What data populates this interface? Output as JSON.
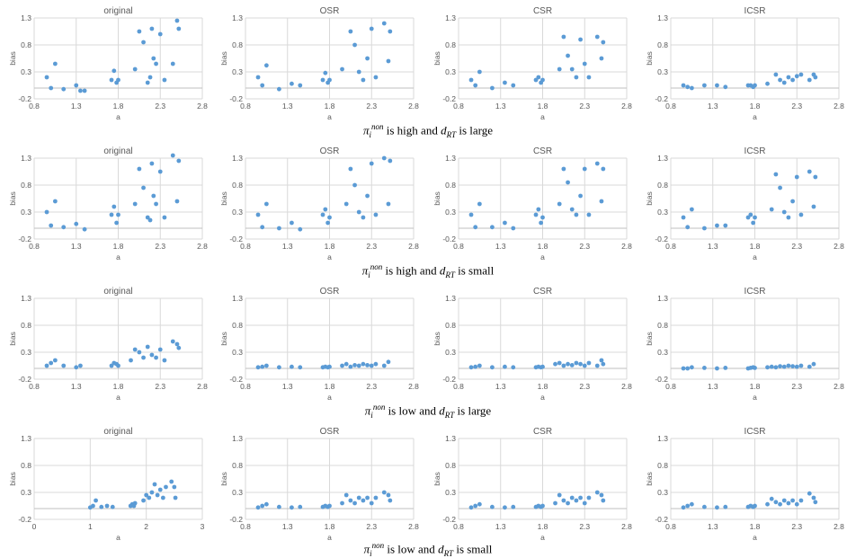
{
  "captions": [
    {
      "pi": "π",
      "pi_sub": "i",
      "pi_sup": "non",
      "level": "is high and",
      "d": "d",
      "d_sub": "RT",
      "dist": "is large"
    },
    {
      "pi": "π",
      "pi_sub": "i",
      "pi_sup": "non",
      "level": "is high and",
      "d": "d",
      "d_sub": "RT",
      "dist": "is small"
    },
    {
      "pi": "π",
      "pi_sub": "i",
      "pi_sup": "non",
      "level": "is low and",
      "d": "d",
      "d_sub": "RT",
      "dist": "is large"
    },
    {
      "pi": "π",
      "pi_sub": "i",
      "pi_sup": "non",
      "level": "is low and",
      "d": "d",
      "d_sub": "RT",
      "dist": "is small"
    }
  ],
  "style": {
    "marker_color": "#5b9bd5",
    "grid_color": "#d9d9d9"
  },
  "chart_data": [
    {
      "type": "scatter",
      "title": "original",
      "xlabel": "a",
      "ylabel": "bias",
      "xlim": [
        0.8,
        2.8
      ],
      "ylim": [
        -0.2,
        1.3
      ],
      "xticks": [
        "0.8",
        "1.3",
        "1.8",
        "2.3",
        "2.8"
      ],
      "yticks": [
        "-0.2",
        "0.3",
        "0.8",
        "1.3"
      ],
      "x": [
        0.95,
        1.0,
        1.05,
        1.15,
        1.3,
        1.35,
        1.4,
        1.72,
        1.75,
        1.78,
        1.8,
        2.0,
        2.05,
        2.1,
        2.15,
        2.18,
        2.2,
        2.22,
        2.25,
        2.3,
        2.35,
        2.45,
        2.5,
        2.52
      ],
      "y": [
        0.2,
        0.0,
        0.45,
        -0.02,
        0.05,
        -0.05,
        -0.05,
        0.15,
        0.32,
        0.1,
        0.15,
        0.35,
        1.05,
        0.85,
        0.1,
        0.2,
        1.1,
        0.55,
        0.45,
        1.0,
        0.15,
        0.45,
        1.25,
        1.1
      ]
    },
    {
      "type": "scatter",
      "title": "OSR",
      "xlabel": "a",
      "ylabel": "bias",
      "xlim": [
        0.8,
        2.8
      ],
      "ylim": [
        -0.2,
        1.3
      ],
      "xticks": [
        "0.8",
        "1.3",
        "1.8",
        "2.3",
        "2.8"
      ],
      "yticks": [
        "-0.2",
        "0.3",
        "0.8",
        "1.3"
      ],
      "x": [
        0.95,
        1.0,
        1.05,
        1.2,
        1.35,
        1.45,
        1.72,
        1.75,
        1.78,
        1.8,
        1.95,
        2.05,
        2.1,
        2.15,
        2.2,
        2.25,
        2.3,
        2.35,
        2.45,
        2.5,
        2.52
      ],
      "y": [
        0.2,
        0.05,
        0.42,
        -0.02,
        0.08,
        0.05,
        0.15,
        0.28,
        0.1,
        0.15,
        0.35,
        1.05,
        0.8,
        0.3,
        0.15,
        0.55,
        1.1,
        0.2,
        1.2,
        0.5,
        1.05
      ]
    },
    {
      "type": "scatter",
      "title": "CSR",
      "xlabel": "a",
      "ylabel": "bias",
      "xlim": [
        0.8,
        2.8
      ],
      "ylim": [
        -0.2,
        1.3
      ],
      "xticks": [
        "0.8",
        "1.3",
        "1.8",
        "2.3",
        "2.8"
      ],
      "yticks": [
        "-0.2",
        "0.3",
        "0.8",
        "1.3"
      ],
      "x": [
        0.95,
        1.0,
        1.05,
        1.2,
        1.35,
        1.45,
        1.72,
        1.75,
        1.78,
        1.8,
        2.0,
        2.05,
        2.1,
        2.15,
        2.2,
        2.25,
        2.3,
        2.35,
        2.45,
        2.5,
        2.52
      ],
      "y": [
        0.15,
        0.05,
        0.3,
        0.0,
        0.1,
        0.05,
        0.15,
        0.2,
        0.1,
        0.15,
        0.35,
        0.95,
        0.6,
        0.35,
        0.2,
        0.9,
        0.45,
        0.2,
        0.95,
        0.55,
        0.85
      ]
    },
    {
      "type": "scatter",
      "title": "ICSR",
      "xlabel": "a",
      "ylabel": "bias",
      "xlim": [
        0.8,
        2.8
      ],
      "ylim": [
        -0.2,
        1.3
      ],
      "xticks": [
        "0.8",
        "1.3",
        "1.8",
        "2.3",
        "2.8"
      ],
      "yticks": [
        "-0.2",
        "0.3",
        "0.8",
        "1.3"
      ],
      "x": [
        0.95,
        1.0,
        1.05,
        1.2,
        1.35,
        1.45,
        1.72,
        1.75,
        1.78,
        1.8,
        1.95,
        2.05,
        2.1,
        2.15,
        2.2,
        2.25,
        2.3,
        2.35,
        2.45,
        2.5,
        2.52
      ],
      "y": [
        0.05,
        0.02,
        0.0,
        0.05,
        0.05,
        0.02,
        0.05,
        0.05,
        0.02,
        0.05,
        0.08,
        0.25,
        0.15,
        0.1,
        0.2,
        0.15,
        0.22,
        0.25,
        0.15,
        0.25,
        0.2
      ]
    },
    {
      "type": "scatter",
      "title": "original",
      "xlabel": "a",
      "ylabel": "bias",
      "xlim": [
        0.8,
        2.8
      ],
      "ylim": [
        -0.2,
        1.3
      ],
      "xticks": [
        "0.8",
        "1.3",
        "1.8",
        "2.3",
        "2.8"
      ],
      "yticks": [
        "-0.2",
        "0.3",
        "0.8",
        "1.3"
      ],
      "x": [
        0.95,
        1.0,
        1.05,
        1.15,
        1.3,
        1.4,
        1.72,
        1.75,
        1.78,
        1.8,
        2.0,
        2.05,
        2.1,
        2.15,
        2.18,
        2.2,
        2.22,
        2.25,
        2.3,
        2.35,
        2.45,
        2.5,
        2.52
      ],
      "y": [
        0.3,
        0.05,
        0.5,
        0.02,
        0.08,
        -0.02,
        0.25,
        0.4,
        0.1,
        0.25,
        0.45,
        1.1,
        0.75,
        0.2,
        0.15,
        1.2,
        0.6,
        0.45,
        1.05,
        0.2,
        1.35,
        0.5,
        1.25
      ]
    },
    {
      "type": "scatter",
      "title": "OSR",
      "xlabel": "a",
      "ylabel": "bias",
      "xlim": [
        0.8,
        2.8
      ],
      "ylim": [
        -0.2,
        1.3
      ],
      "xticks": [
        "0.8",
        "1.3",
        "1.8",
        "2.3",
        "2.8"
      ],
      "yticks": [
        "-0.2",
        "0.3",
        "0.8",
        "1.3"
      ],
      "x": [
        0.95,
        1.0,
        1.05,
        1.2,
        1.35,
        1.45,
        1.72,
        1.75,
        1.78,
        1.8,
        2.0,
        2.05,
        2.1,
        2.15,
        2.2,
        2.25,
        2.3,
        2.35,
        2.45,
        2.5,
        2.52
      ],
      "y": [
        0.25,
        0.02,
        0.45,
        0.0,
        0.1,
        -0.02,
        0.25,
        0.35,
        0.1,
        0.2,
        0.45,
        1.1,
        0.8,
        0.3,
        0.2,
        0.6,
        1.2,
        0.25,
        1.3,
        0.45,
        1.25
      ]
    },
    {
      "type": "scatter",
      "title": "CSR",
      "xlabel": "a",
      "ylabel": "bias",
      "xlim": [
        0.8,
        2.8
      ],
      "ylim": [
        -0.2,
        1.3
      ],
      "xticks": [
        "0.8",
        "1.3",
        "1.8",
        "2.3",
        "2.8"
      ],
      "yticks": [
        "-0.2",
        "0.3",
        "0.8",
        "1.3"
      ],
      "x": [
        0.95,
        1.0,
        1.05,
        1.2,
        1.35,
        1.45,
        1.72,
        1.75,
        1.78,
        1.8,
        2.0,
        2.05,
        2.1,
        2.15,
        2.2,
        2.25,
        2.3,
        2.35,
        2.45,
        2.5,
        2.52
      ],
      "y": [
        0.25,
        0.02,
        0.45,
        0.02,
        0.1,
        0.0,
        0.25,
        0.35,
        0.1,
        0.2,
        0.45,
        1.1,
        0.85,
        0.35,
        0.25,
        0.6,
        1.1,
        0.25,
        1.2,
        0.5,
        1.1
      ]
    },
    {
      "type": "scatter",
      "title": "ICSR",
      "xlabel": "a",
      "ylabel": "bias",
      "xlim": [
        0.8,
        2.8
      ],
      "ylim": [
        -0.2,
        1.3
      ],
      "xticks": [
        "0.8",
        "1.3",
        "1.8",
        "2.3",
        "2.8"
      ],
      "yticks": [
        "-0.2",
        "0.3",
        "0.8",
        "1.3"
      ],
      "x": [
        0.95,
        1.0,
        1.05,
        1.2,
        1.35,
        1.45,
        1.72,
        1.75,
        1.78,
        1.8,
        2.0,
        2.05,
        2.1,
        2.15,
        2.2,
        2.25,
        2.3,
        2.35,
        2.45,
        2.5,
        2.52
      ],
      "y": [
        0.2,
        0.02,
        0.35,
        0.0,
        0.05,
        0.05,
        0.2,
        0.25,
        0.1,
        0.2,
        0.35,
        1.0,
        0.75,
        0.3,
        0.2,
        0.5,
        0.95,
        0.25,
        1.05,
        0.4,
        0.95
      ]
    },
    {
      "type": "scatter",
      "title": "original",
      "xlabel": "a",
      "ylabel": "bias",
      "xlim": [
        0.8,
        2.8
      ],
      "ylim": [
        -0.2,
        1.3
      ],
      "xticks": [
        "0.8",
        "1.3",
        "1.8",
        "2.3",
        "2.8"
      ],
      "yticks": [
        "-0.2",
        "0.3",
        "0.8",
        "1.3"
      ],
      "x": [
        0.95,
        1.0,
        1.05,
        1.15,
        1.3,
        1.35,
        1.72,
        1.75,
        1.78,
        1.8,
        1.95,
        2.0,
        2.05,
        2.1,
        2.15,
        2.2,
        2.25,
        2.3,
        2.35,
        2.45,
        2.5,
        2.52
      ],
      "y": [
        0.05,
        0.1,
        0.15,
        0.05,
        0.02,
        0.05,
        0.05,
        0.1,
        0.08,
        0.05,
        0.15,
        0.35,
        0.3,
        0.2,
        0.4,
        0.25,
        0.2,
        0.35,
        0.15,
        0.5,
        0.45,
        0.38
      ]
    },
    {
      "type": "scatter",
      "title": "OSR",
      "xlabel": "a",
      "ylabel": "bias",
      "xlim": [
        0.8,
        2.8
      ],
      "ylim": [
        -0.2,
        1.3
      ],
      "xticks": [
        "0.8",
        "1.3",
        "1.8",
        "2.3",
        "2.8"
      ],
      "yticks": [
        "-0.2",
        "0.3",
        "0.8",
        "1.3"
      ],
      "x": [
        0.95,
        1.0,
        1.05,
        1.2,
        1.35,
        1.45,
        1.72,
        1.75,
        1.78,
        1.8,
        1.95,
        2.0,
        2.05,
        2.1,
        2.15,
        2.2,
        2.25,
        2.3,
        2.35,
        2.45,
        2.5
      ],
      "y": [
        0.02,
        0.03,
        0.05,
        0.02,
        0.03,
        0.02,
        0.02,
        0.03,
        0.02,
        0.03,
        0.05,
        0.08,
        0.03,
        0.06,
        0.05,
        0.08,
        0.06,
        0.05,
        0.08,
        0.05,
        0.12
      ]
    },
    {
      "type": "scatter",
      "title": "CSR",
      "xlabel": "a",
      "ylabel": "bias",
      "xlim": [
        0.8,
        2.8
      ],
      "ylim": [
        -0.2,
        1.3
      ],
      "xticks": [
        "0.8",
        "1.3",
        "1.8",
        "2.3",
        "2.8"
      ],
      "yticks": [
        "-0.2",
        "0.3",
        "0.8",
        "1.3"
      ],
      "x": [
        0.95,
        1.0,
        1.05,
        1.2,
        1.35,
        1.45,
        1.72,
        1.75,
        1.78,
        1.8,
        1.95,
        2.0,
        2.05,
        2.1,
        2.15,
        2.2,
        2.25,
        2.3,
        2.35,
        2.45,
        2.5,
        2.52
      ],
      "y": [
        0.02,
        0.03,
        0.05,
        0.02,
        0.03,
        0.02,
        0.02,
        0.03,
        0.02,
        0.03,
        0.08,
        0.1,
        0.05,
        0.08,
        0.06,
        0.1,
        0.08,
        0.05,
        0.1,
        0.05,
        0.15,
        0.08
      ]
    },
    {
      "type": "scatter",
      "title": "ICSR",
      "xlabel": "a",
      "ylabel": "bias",
      "xlim": [
        0.8,
        2.8
      ],
      "ylim": [
        -0.2,
        1.3
      ],
      "xticks": [
        "0.8",
        "1.3",
        "1.8",
        "2.3",
        "2.8"
      ],
      "yticks": [
        "-0.2",
        "0.3",
        "0.8",
        "1.3"
      ],
      "x": [
        0.95,
        1.0,
        1.05,
        1.2,
        1.35,
        1.45,
        1.72,
        1.75,
        1.78,
        1.8,
        1.95,
        2.0,
        2.05,
        2.1,
        2.15,
        2.2,
        2.25,
        2.3,
        2.35,
        2.45,
        2.5
      ],
      "y": [
        0.0,
        0.0,
        0.02,
        0.01,
        0.0,
        0.01,
        0.0,
        0.01,
        0.02,
        0.01,
        0.02,
        0.03,
        0.02,
        0.04,
        0.03,
        0.05,
        0.04,
        0.03,
        0.05,
        0.03,
        0.08
      ]
    },
    {
      "type": "scatter",
      "title": "original",
      "xlabel": "a",
      "ylabel": "bias",
      "xlim": [
        0,
        3
      ],
      "ylim": [
        -0.2,
        1.3
      ],
      "xticks": [
        "0",
        "1",
        "2",
        "3"
      ],
      "yticks": [
        "-0.2",
        "0.3",
        "0.8",
        "1.3"
      ],
      "x": [
        1.0,
        1.05,
        1.1,
        1.2,
        1.3,
        1.4,
        1.72,
        1.75,
        1.78,
        1.8,
        1.95,
        2.0,
        2.05,
        2.1,
        2.15,
        2.2,
        2.25,
        2.3,
        2.35,
        2.45,
        2.5,
        2.52
      ],
      "y": [
        0.02,
        0.05,
        0.15,
        0.03,
        0.05,
        0.03,
        0.05,
        0.08,
        0.05,
        0.1,
        0.15,
        0.25,
        0.2,
        0.3,
        0.45,
        0.25,
        0.35,
        0.2,
        0.4,
        0.5,
        0.4,
        0.2
      ]
    },
    {
      "type": "scatter",
      "title": "OSR",
      "xlabel": "a",
      "ylabel": "bias",
      "xlim": [
        0.8,
        2.8
      ],
      "ylim": [
        -0.2,
        1.3
      ],
      "xticks": [
        "0.8",
        "1.3",
        "1.8",
        "2.3",
        "2.8"
      ],
      "yticks": [
        "-0.2",
        "0.3",
        "0.8",
        "1.3"
      ],
      "x": [
        0.95,
        1.0,
        1.05,
        1.2,
        1.35,
        1.45,
        1.72,
        1.75,
        1.78,
        1.8,
        1.95,
        2.0,
        2.05,
        2.1,
        2.15,
        2.2,
        2.25,
        2.3,
        2.35,
        2.45,
        2.5,
        2.52
      ],
      "y": [
        0.02,
        0.05,
        0.08,
        0.03,
        0.02,
        0.03,
        0.03,
        0.05,
        0.03,
        0.05,
        0.1,
        0.25,
        0.15,
        0.1,
        0.2,
        0.15,
        0.2,
        0.1,
        0.2,
        0.3,
        0.25,
        0.15
      ]
    },
    {
      "type": "scatter",
      "title": "CSR",
      "xlabel": "a",
      "ylabel": "bias",
      "xlim": [
        0.8,
        2.8
      ],
      "ylim": [
        -0.2,
        1.3
      ],
      "xticks": [
        "0.8",
        "1.3",
        "1.8",
        "2.3",
        "2.8"
      ],
      "yticks": [
        "-0.2",
        "0.3",
        "0.8",
        "1.3"
      ],
      "x": [
        0.95,
        1.0,
        1.05,
        1.2,
        1.35,
        1.45,
        1.72,
        1.75,
        1.78,
        1.8,
        1.95,
        2.0,
        2.05,
        2.1,
        2.15,
        2.2,
        2.25,
        2.3,
        2.35,
        2.45,
        2.5,
        2.52
      ],
      "y": [
        0.02,
        0.05,
        0.08,
        0.03,
        0.02,
        0.03,
        0.03,
        0.05,
        0.03,
        0.05,
        0.1,
        0.25,
        0.15,
        0.1,
        0.2,
        0.15,
        0.2,
        0.1,
        0.2,
        0.3,
        0.25,
        0.15
      ]
    },
    {
      "type": "scatter",
      "title": "ICSR",
      "xlabel": "a",
      "ylabel": "bias",
      "xlim": [
        0.8,
        2.8
      ],
      "ylim": [
        -0.2,
        1.3
      ],
      "xticks": [
        "0.8",
        "1.3",
        "1.8",
        "2.3",
        "2.8"
      ],
      "yticks": [
        "-0.2",
        "0.3",
        "0.8",
        "1.3"
      ],
      "x": [
        0.95,
        1.0,
        1.05,
        1.2,
        1.35,
        1.45,
        1.72,
        1.75,
        1.78,
        1.8,
        1.95,
        2.0,
        2.05,
        2.1,
        2.15,
        2.2,
        2.25,
        2.3,
        2.35,
        2.45,
        2.5,
        2.52
      ],
      "y": [
        0.02,
        0.05,
        0.08,
        0.03,
        0.02,
        0.03,
        0.03,
        0.05,
        0.03,
        0.05,
        0.08,
        0.18,
        0.12,
        0.08,
        0.15,
        0.1,
        0.15,
        0.08,
        0.15,
        0.28,
        0.2,
        0.12
      ]
    }
  ]
}
